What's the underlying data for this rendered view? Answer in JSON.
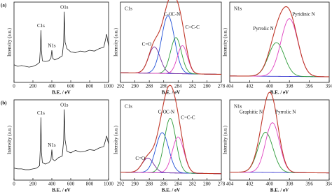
{
  "chart_data": [
    {
      "type": "line",
      "panel_label": "(a)",
      "xlabel": "B.E. / eV",
      "ylabel": "Intensity (a.u.)",
      "xlim": [
        0,
        1000
      ],
      "xticks": [
        0,
        200,
        400,
        600,
        800,
        1000
      ],
      "ylim": [
        0,
        1
      ],
      "x": [
        0,
        40,
        80,
        120,
        160,
        200,
        240,
        270,
        280,
        285,
        290,
        300,
        330,
        370,
        390,
        400,
        410,
        430,
        470,
        510,
        525,
        532,
        540,
        560,
        600,
        650,
        700,
        750,
        800,
        850,
        900,
        950,
        980,
        1000
      ],
      "series": [
        {
          "color": "#222222",
          "values": [
            0.22,
            0.2,
            0.21,
            0.2,
            0.19,
            0.2,
            0.22,
            0.25,
            0.45,
            0.65,
            0.4,
            0.27,
            0.26,
            0.27,
            0.3,
            0.4,
            0.3,
            0.28,
            0.3,
            0.33,
            0.5,
            0.88,
            0.5,
            0.42,
            0.38,
            0.37,
            0.39,
            0.38,
            0.4,
            0.39,
            0.42,
            0.44,
            0.6,
            0.45
          ]
        }
      ],
      "annotations": [
        {
          "text": "C1s",
          "x": 285
        },
        {
          "text": "N1s",
          "x": 400
        },
        {
          "text": "O1s",
          "x": 532
        }
      ]
    },
    {
      "type": "peak-fit",
      "title": "C1s",
      "xlabel": "B.E. / eV",
      "ylabel": "Intensity (a.u.)",
      "xlim": [
        292,
        278
      ],
      "xticks": [
        292,
        290,
        288,
        286,
        284,
        282,
        280,
        278
      ],
      "ylim": [
        0,
        1
      ],
      "background": [
        0.12,
        0.1
      ],
      "background_color": "#3a3ad0",
      "envelope_color": "#c0392b",
      "components": [
        {
          "name": "C=O",
          "color": "#7b2fa0",
          "center": 287.3,
          "height": 0.33,
          "width": 0.8
        },
        {
          "name": "C-O",
          "color": "#1f4fd6",
          "center": 285.4,
          "height": 0.72,
          "width": 0.9
        },
        {
          "name": "C-N",
          "color": "#2e9c3a",
          "center": 284.3,
          "height": 0.45,
          "width": 0.75
        },
        {
          "name": "C=C-C",
          "color": "#e040c0",
          "center": 283.4,
          "height": 0.35,
          "width": 0.7
        }
      ]
    },
    {
      "type": "peak-fit",
      "title": "N1s",
      "xlabel": "B.E. / eV",
      "ylabel": "Intensity (a.u.)",
      "xlim": [
        404,
        394
      ],
      "xticks": [
        404,
        402,
        400,
        398,
        396,
        394
      ],
      "ylim": [
        0,
        1
      ],
      "background": [
        0.08,
        0.07
      ],
      "background_color": "#3a3ad0",
      "envelope_color": "#c0392b",
      "components": [
        {
          "name": "Pyrrolic N",
          "color": "#2e9c3a",
          "center": 399.3,
          "height": 0.42,
          "width": 0.8
        },
        {
          "name": "Pyridinic N",
          "color": "#e040c0",
          "center": 398.0,
          "height": 0.72,
          "width": 0.85
        }
      ]
    },
    {
      "type": "line",
      "panel_label": "(b)",
      "xlabel": "B.E. / eV",
      "ylabel": "Intensity (a.u.)",
      "xlim": [
        0,
        1000
      ],
      "xticks": [
        0,
        200,
        400,
        600,
        800,
        1000
      ],
      "ylim": [
        0,
        1
      ],
      "x": [
        0,
        40,
        80,
        120,
        160,
        200,
        240,
        270,
        280,
        285,
        290,
        300,
        330,
        370,
        390,
        400,
        410,
        430,
        470,
        510,
        525,
        532,
        540,
        560,
        600,
        650,
        700,
        750,
        800,
        850,
        900,
        950,
        980,
        1000
      ],
      "series": [
        {
          "color": "#222222",
          "values": [
            0.15,
            0.14,
            0.14,
            0.13,
            0.13,
            0.14,
            0.15,
            0.18,
            0.45,
            0.78,
            0.35,
            0.22,
            0.2,
            0.22,
            0.25,
            0.38,
            0.26,
            0.24,
            0.28,
            0.3,
            0.5,
            0.88,
            0.5,
            0.36,
            0.34,
            0.37,
            0.35,
            0.36,
            0.38,
            0.37,
            0.4,
            0.42,
            0.55,
            0.45
          ]
        }
      ],
      "annotations": [
        {
          "text": "C1s",
          "x": 285
        },
        {
          "text": "N1s",
          "x": 400
        },
        {
          "text": "O1s",
          "x": 532
        }
      ]
    },
    {
      "type": "peak-fit",
      "title": "C1s",
      "xlabel": "B.E. / eV",
      "ylabel": "Intensity (a.u.)",
      "xlim": [
        292,
        278
      ],
      "xticks": [
        292,
        290,
        288,
        286,
        284,
        282,
        280,
        278
      ],
      "ylim": [
        0,
        1
      ],
      "background": [
        0.1,
        0.08
      ],
      "background_color": "#3a3ad0",
      "envelope_color": "#c0392b",
      "components": [
        {
          "name": "C=O",
          "color": "#7b2fa0",
          "center": 288.2,
          "height": 0.18,
          "width": 0.8
        },
        {
          "name": "C-O",
          "color": "#1f4fd6",
          "center": 286.2,
          "height": 0.5,
          "width": 0.9
        },
        {
          "name": "C-N",
          "color": "#2e9c3a",
          "center": 285.1,
          "height": 0.68,
          "width": 0.8
        },
        {
          "name": "C=C-C",
          "color": "#e040c0",
          "center": 284.0,
          "height": 0.45,
          "width": 0.8
        }
      ]
    },
    {
      "type": "peak-fit",
      "title": "N1s",
      "xlabel": "B.E. / eV",
      "ylabel": "Intensity (a.u.)",
      "xlim": [
        404,
        394
      ],
      "xticks": [
        404,
        402,
        400,
        398,
        396,
        394
      ],
      "ylim": [
        0,
        1
      ],
      "background": [
        0.1,
        0.09
      ],
      "background_color": "#3a3ad0",
      "envelope_color": "#c0392b",
      "components": [
        {
          "name": "Graphitic N",
          "color": "#2e9c3a",
          "center": 400.4,
          "height": 0.5,
          "width": 0.75
        },
        {
          "name": "Pyrrolic N",
          "color": "#e040c0",
          "center": 399.7,
          "height": 0.62,
          "width": 0.7
        }
      ]
    }
  ]
}
